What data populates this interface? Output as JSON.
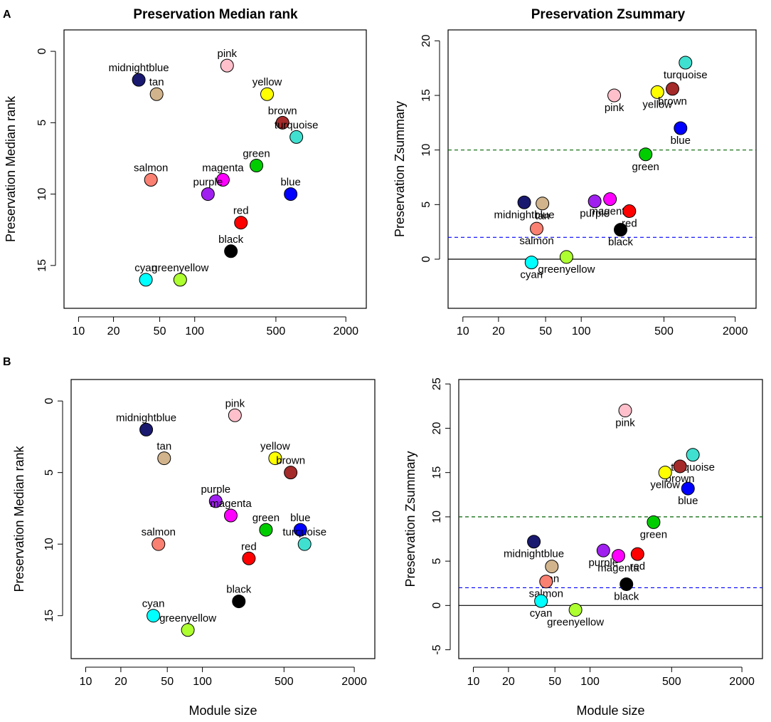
{
  "figure": {
    "panel_letters": [
      "A",
      "B"
    ],
    "x_tick_labels": [
      "10",
      "20",
      "50",
      "100",
      "500",
      "2000"
    ],
    "xlabel": "Module size"
  },
  "chart_data": [
    {
      "id": "A-left",
      "type": "scatter",
      "title": "Preservation Median rank",
      "xlabel": "",
      "ylabel": "Preservation Median rank",
      "x_scale": "log10",
      "xlim": [
        7.5,
        3000
      ],
      "x_ticks": [
        10,
        20,
        50,
        100,
        500,
        2000
      ],
      "ylim": [
        18,
        -1.5
      ],
      "y_ticks": [
        0,
        5,
        10,
        15
      ],
      "y_inverted": true,
      "hlines": [],
      "points": [
        {
          "name": "midnightblue",
          "x": 33,
          "y": 2,
          "color": "#191970"
        },
        {
          "name": "tan",
          "x": 47,
          "y": 3,
          "color": "#D2B48C"
        },
        {
          "name": "pink",
          "x": 190,
          "y": 1,
          "color": "#FFC0CB"
        },
        {
          "name": "yellow",
          "x": 420,
          "y": 3,
          "color": "#FFFF00"
        },
        {
          "name": "brown",
          "x": 570,
          "y": 5,
          "color": "#A52A2A"
        },
        {
          "name": "turquoise",
          "x": 750,
          "y": 6,
          "color": "#40E0D0"
        },
        {
          "name": "green",
          "x": 340,
          "y": 8,
          "color": "#00CD00"
        },
        {
          "name": "salmon",
          "x": 42,
          "y": 9,
          "color": "#FA8072"
        },
        {
          "name": "magenta",
          "x": 175,
          "y": 9,
          "color": "#FF00FF"
        },
        {
          "name": "purple",
          "x": 130,
          "y": 10,
          "color": "#A020F0"
        },
        {
          "name": "blue",
          "x": 670,
          "y": 10,
          "color": "#0000FF"
        },
        {
          "name": "red",
          "x": 250,
          "y": 12,
          "color": "#FF0000"
        },
        {
          "name": "black",
          "x": 205,
          "y": 14,
          "color": "#000000"
        },
        {
          "name": "cyan",
          "x": 38,
          "y": 16,
          "color": "#00FFFF"
        },
        {
          "name": "greenyellow",
          "x": 75,
          "y": 16,
          "color": "#ADFF2F"
        }
      ]
    },
    {
      "id": "A-right",
      "type": "scatter",
      "title": "Preservation Zsummary",
      "xlabel": "",
      "ylabel": "Preservation Zsummary",
      "x_scale": "log10",
      "xlim": [
        7.5,
        3000
      ],
      "x_ticks": [
        10,
        20,
        50,
        100,
        500,
        2000
      ],
      "ylim": [
        -4.5,
        21
      ],
      "y_ticks": [
        0,
        5,
        10,
        15,
        20
      ],
      "y_inverted": false,
      "hlines": [
        {
          "y": 10,
          "color": "#006400",
          "dash": "dashed"
        },
        {
          "y": 2,
          "color": "#0000FF",
          "dash": "dashed"
        },
        {
          "y": 0,
          "color": "#000000",
          "dash": "solid"
        }
      ],
      "points": [
        {
          "name": "turquoise",
          "x": 760,
          "y": 18,
          "color": "#40E0D0"
        },
        {
          "name": "pink",
          "x": 190,
          "y": 15,
          "color": "#FFC0CB"
        },
        {
          "name": "yellow",
          "x": 440,
          "y": 15.3,
          "color": "#FFFF00"
        },
        {
          "name": "brown",
          "x": 590,
          "y": 15.6,
          "color": "#A52A2A"
        },
        {
          "name": "blue",
          "x": 690,
          "y": 12,
          "color": "#0000FF"
        },
        {
          "name": "green",
          "x": 350,
          "y": 9.6,
          "color": "#00CD00"
        },
        {
          "name": "midnightblue",
          "x": 33,
          "y": 5.2,
          "color": "#191970"
        },
        {
          "name": "tan",
          "x": 47,
          "y": 5.1,
          "color": "#D2B48C"
        },
        {
          "name": "purple",
          "x": 130,
          "y": 5.3,
          "color": "#A020F0"
        },
        {
          "name": "magenta",
          "x": 175,
          "y": 5.5,
          "color": "#FF00FF"
        },
        {
          "name": "red",
          "x": 255,
          "y": 4.4,
          "color": "#FF0000"
        },
        {
          "name": "salmon",
          "x": 42,
          "y": 2.8,
          "color": "#FA8072"
        },
        {
          "name": "black",
          "x": 215,
          "y": 2.7,
          "color": "#000000"
        },
        {
          "name": "cyan",
          "x": 38,
          "y": -0.3,
          "color": "#00FFFF"
        },
        {
          "name": "greenyellow",
          "x": 75,
          "y": 0.2,
          "color": "#ADFF2F"
        }
      ]
    },
    {
      "id": "B-left",
      "type": "scatter",
      "title": "",
      "xlabel": "Module size",
      "ylabel": "Preservation Median rank",
      "x_scale": "log10",
      "xlim": [
        7.5,
        3000
      ],
      "x_ticks": [
        10,
        20,
        50,
        100,
        500,
        2000
      ],
      "ylim": [
        18,
        -1.5
      ],
      "y_ticks": [
        0,
        5,
        10,
        15
      ],
      "y_inverted": true,
      "hlines": [],
      "points": [
        {
          "name": "pink",
          "x": 190,
          "y": 1,
          "color": "#FFC0CB"
        },
        {
          "name": "midnightblue",
          "x": 33,
          "y": 2,
          "color": "#191970"
        },
        {
          "name": "tan",
          "x": 47,
          "y": 4,
          "color": "#D2B48C"
        },
        {
          "name": "yellow",
          "x": 420,
          "y": 4,
          "color": "#FFFF00"
        },
        {
          "name": "brown",
          "x": 570,
          "y": 5,
          "color": "#A52A2A"
        },
        {
          "name": "purple",
          "x": 130,
          "y": 7,
          "color": "#A020F0"
        },
        {
          "name": "magenta",
          "x": 175,
          "y": 8,
          "color": "#FF00FF"
        },
        {
          "name": "green",
          "x": 350,
          "y": 9,
          "color": "#00CD00"
        },
        {
          "name": "blue",
          "x": 690,
          "y": 9,
          "color": "#0000FF"
        },
        {
          "name": "turquoise",
          "x": 750,
          "y": 10,
          "color": "#40E0D0"
        },
        {
          "name": "salmon",
          "x": 42,
          "y": 10,
          "color": "#FA8072"
        },
        {
          "name": "red",
          "x": 250,
          "y": 11,
          "color": "#FF0000"
        },
        {
          "name": "black",
          "x": 205,
          "y": 14,
          "color": "#000000"
        },
        {
          "name": "cyan",
          "x": 38,
          "y": 15,
          "color": "#00FFFF"
        },
        {
          "name": "greenyellow",
          "x": 75,
          "y": 16,
          "color": "#ADFF2F"
        }
      ]
    },
    {
      "id": "B-right",
      "type": "scatter",
      "title": "",
      "xlabel": "Module size",
      "ylabel": "Preservation Zsummary",
      "x_scale": "log10",
      "xlim": [
        7.5,
        3000
      ],
      "x_ticks": [
        10,
        20,
        50,
        100,
        500,
        2000
      ],
      "ylim": [
        -6,
        25.5
      ],
      "y_ticks": [
        -5,
        0,
        5,
        10,
        15,
        20,
        25
      ],
      "y_inverted": false,
      "hlines": [
        {
          "y": 10,
          "color": "#006400",
          "dash": "dashed"
        },
        {
          "y": 2,
          "color": "#0000FF",
          "dash": "dashed"
        },
        {
          "y": 0,
          "color": "#000000",
          "dash": "solid"
        }
      ],
      "points": [
        {
          "name": "pink",
          "x": 200,
          "y": 22,
          "color": "#FFC0CB"
        },
        {
          "name": "turquoise",
          "x": 760,
          "y": 17,
          "color": "#40E0D0"
        },
        {
          "name": "brown",
          "x": 590,
          "y": 15.7,
          "color": "#A52A2A"
        },
        {
          "name": "yellow",
          "x": 440,
          "y": 15,
          "color": "#FFFF00"
        },
        {
          "name": "blue",
          "x": 690,
          "y": 13.2,
          "color": "#0000FF"
        },
        {
          "name": "green",
          "x": 350,
          "y": 9.4,
          "color": "#00CD00"
        },
        {
          "name": "midnightblue",
          "x": 33,
          "y": 7.2,
          "color": "#191970"
        },
        {
          "name": "purple",
          "x": 130,
          "y": 6.2,
          "color": "#A020F0"
        },
        {
          "name": "magenta",
          "x": 175,
          "y": 5.6,
          "color": "#FF00FF"
        },
        {
          "name": "red",
          "x": 255,
          "y": 5.8,
          "color": "#FF0000"
        },
        {
          "name": "tan",
          "x": 47,
          "y": 4.4,
          "color": "#D2B48C"
        },
        {
          "name": "salmon",
          "x": 42,
          "y": 2.7,
          "color": "#FA8072"
        },
        {
          "name": "black",
          "x": 205,
          "y": 2.4,
          "color": "#000000"
        },
        {
          "name": "cyan",
          "x": 38,
          "y": 0.5,
          "color": "#00FFFF"
        },
        {
          "name": "greenyellow",
          "x": 75,
          "y": -0.5,
          "color": "#ADFF2F"
        }
      ]
    }
  ]
}
